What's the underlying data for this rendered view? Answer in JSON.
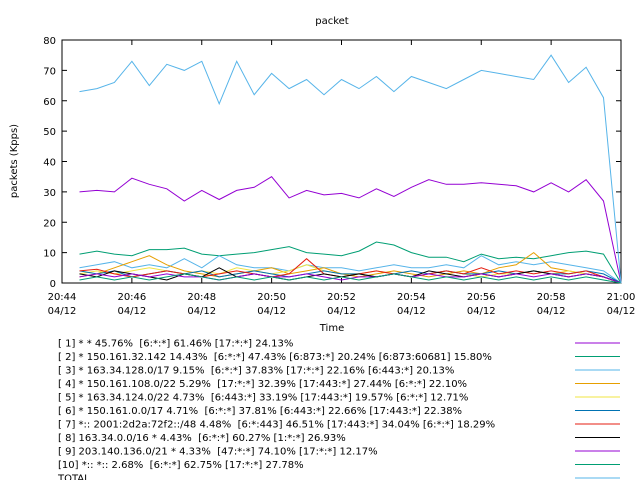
{
  "chart_data": {
    "type": "line",
    "title": "packet",
    "x_label": "Time",
    "y_label": "packets (Kpps)",
    "x": [
      "20:44:30",
      "20:45:00",
      "20:45:30",
      "20:46:00",
      "20:46:30",
      "20:47:00",
      "20:47:30",
      "20:48:00",
      "20:48:30",
      "20:49:00",
      "20:49:30",
      "20:50:00",
      "20:50:30",
      "20:51:00",
      "20:51:30",
      "20:52:00",
      "20:52:30",
      "20:53:00",
      "20:53:30",
      "20:54:00",
      "20:54:30",
      "20:55:00",
      "20:55:30",
      "20:56:00",
      "20:56:30",
      "20:57:00",
      "20:57:30",
      "20:58:00",
      "20:58:30",
      "20:59:00",
      "20:59:30",
      "21:00:00"
    ],
    "xlim": [
      "20:44",
      "21:00"
    ],
    "xticks": [
      "20:44",
      "20:46",
      "20:48",
      "20:50",
      "20:52",
      "20:54",
      "20:56",
      "20:58",
      "21:00"
    ],
    "xtick_date": "04/12",
    "ylim": [
      0,
      80
    ],
    "yticks": [
      0,
      10,
      20,
      30,
      40,
      50,
      60,
      70,
      80
    ],
    "grid": false,
    "series": [
      {
        "name": "[ 1] * * 45.76%  [6:*:*] 61.46% [17:*:*] 24.13%",
        "color": "#9400d3",
        "values": [
          30,
          30.5,
          30,
          34.5,
          32.5,
          31,
          27,
          30.5,
          27.5,
          30.5,
          31.5,
          35,
          28,
          30.5,
          29,
          29.5,
          28,
          31,
          28.5,
          31.5,
          34,
          32.5,
          32.5,
          33,
          32.5,
          32,
          30,
          33,
          30,
          34,
          27,
          0
        ]
      },
      {
        "name": "[ 2] * 150.161.32.142 14.43%  [6:*:*] 47.43% [6:873:*] 20.24% [6:873:60681] 15.80%",
        "color": "#009e73",
        "values": [
          9.5,
          10.5,
          9.5,
          9,
          11,
          11,
          11.5,
          9.5,
          9,
          9.5,
          10,
          11,
          12,
          10,
          9.5,
          9,
          10.5,
          13.5,
          12.5,
          10,
          8.5,
          8.5,
          7,
          9.5,
          8,
          8.5,
          8,
          9,
          10,
          10.5,
          9.5,
          0
        ]
      },
      {
        "name": "[ 3] * 163.34.128.0/17 9.15%  [6:*:*] 37.83% [17:*:*] 22.16% [6:443:*] 20.13%",
        "color": "#56b4e9",
        "values": [
          5,
          6,
          7,
          5,
          6,
          5,
          8,
          5,
          9,
          6,
          5,
          5,
          4,
          6,
          5,
          5,
          4,
          5,
          6,
          5,
          5,
          6,
          5,
          9,
          6,
          7,
          6,
          7,
          6,
          5,
          4,
          0
        ]
      },
      {
        "name": "[ 4] * 150.161.108.0/22 5.29%  [17:*:*] 32.39% [17:443:*] 27.44% [6:*:*] 22.10%",
        "color": "#e69f00",
        "values": [
          2,
          3,
          5,
          7,
          9,
          6,
          4,
          3,
          2,
          3,
          4,
          5,
          3,
          4,
          5,
          3,
          2,
          3,
          4,
          3,
          2,
          3,
          4,
          3,
          5,
          6,
          10,
          5,
          4,
          3,
          2,
          0
        ]
      },
      {
        "name": "[ 5] * 163.34.124.0/22 4.73%  [6:443:*] 33.19% [17:443:*] 19.57% [6:*:*] 12.71%",
        "color": "#f0e442",
        "values": [
          3,
          4,
          3,
          4,
          5,
          4,
          3,
          4,
          3,
          5,
          4,
          3,
          4,
          6,
          4,
          3,
          3,
          4,
          3,
          2,
          3,
          4,
          3,
          2,
          3,
          3,
          4,
          3,
          4,
          3,
          2,
          0
        ]
      },
      {
        "name": "[ 6] * 150.161.0.0/17 4.71%  [6:*:*] 37.81% [6:443:*] 22.66% [17:443:*] 22.38%",
        "color": "#0072b2",
        "values": [
          4,
          3,
          4,
          2,
          3,
          4,
          3,
          4,
          2,
          3,
          4,
          3,
          2,
          3,
          4,
          3,
          3,
          2,
          3,
          4,
          3,
          4,
          3,
          3,
          4,
          3,
          4,
          3,
          3,
          4,
          3,
          0
        ]
      },
      {
        "name": "[ 7] *:: 2001:2d2a:72f2::/48 4.48%  [6:*:443] 46.51% [17:443:*] 34.04% [6:*:*] 18.29%",
        "color": "#e51e10",
        "values": [
          4,
          4.5,
          3,
          2,
          3,
          4,
          3,
          2,
          3,
          4,
          3,
          2,
          3,
          8,
          3,
          2,
          3,
          4,
          3,
          2,
          3,
          4,
          3,
          5,
          3,
          4,
          3,
          4,
          3,
          4,
          2,
          0
        ]
      },
      {
        "name": "[ 8] 163.34.0.0/16 * 4.43%  [6:*:*] 60.27% [1:*:*] 26.93%",
        "color": "#000000",
        "values": [
          3,
          2,
          4,
          3,
          2,
          1,
          3,
          2,
          5,
          2,
          3,
          2,
          1,
          2,
          3,
          2,
          3,
          2,
          3,
          2,
          4,
          3,
          2,
          3,
          2,
          3,
          4,
          3,
          2,
          3,
          2,
          0
        ]
      },
      {
        "name": "[ 9] 203.140.136.0/21 * 4.33%  [47:*:*] 74.10% [17:*:*] 12.17%",
        "color": "#9400d3",
        "values": [
          2,
          3,
          2,
          3,
          2,
          3,
          2,
          2,
          1,
          2,
          3,
          2,
          2,
          3,
          2,
          1,
          2,
          2,
          3,
          2,
          3,
          2,
          2,
          3,
          2,
          3,
          2,
          3,
          2,
          3,
          2,
          0
        ]
      },
      {
        "name": "[10] *:: *:: 2.68%  [6:*:*] 62.75% [17:*:*] 27.78%",
        "color": "#009e73",
        "values": [
          1,
          2,
          1,
          2,
          1,
          2,
          3,
          2,
          1,
          2,
          1,
          2,
          1,
          2,
          1,
          2,
          1,
          2,
          3,
          2,
          1,
          2,
          1,
          2,
          1,
          2,
          1,
          2,
          1,
          2,
          1,
          0
        ]
      },
      {
        "name": "TOTAL",
        "color": "#56b4e9",
        "values": [
          63,
          64,
          66,
          73,
          65,
          72,
          70,
          73,
          59,
          73,
          62,
          69,
          64,
          67,
          62,
          67,
          64,
          68,
          63,
          68,
          66,
          64,
          67,
          70,
          69,
          68,
          67,
          75,
          66,
          71,
          61,
          0
        ]
      }
    ]
  }
}
